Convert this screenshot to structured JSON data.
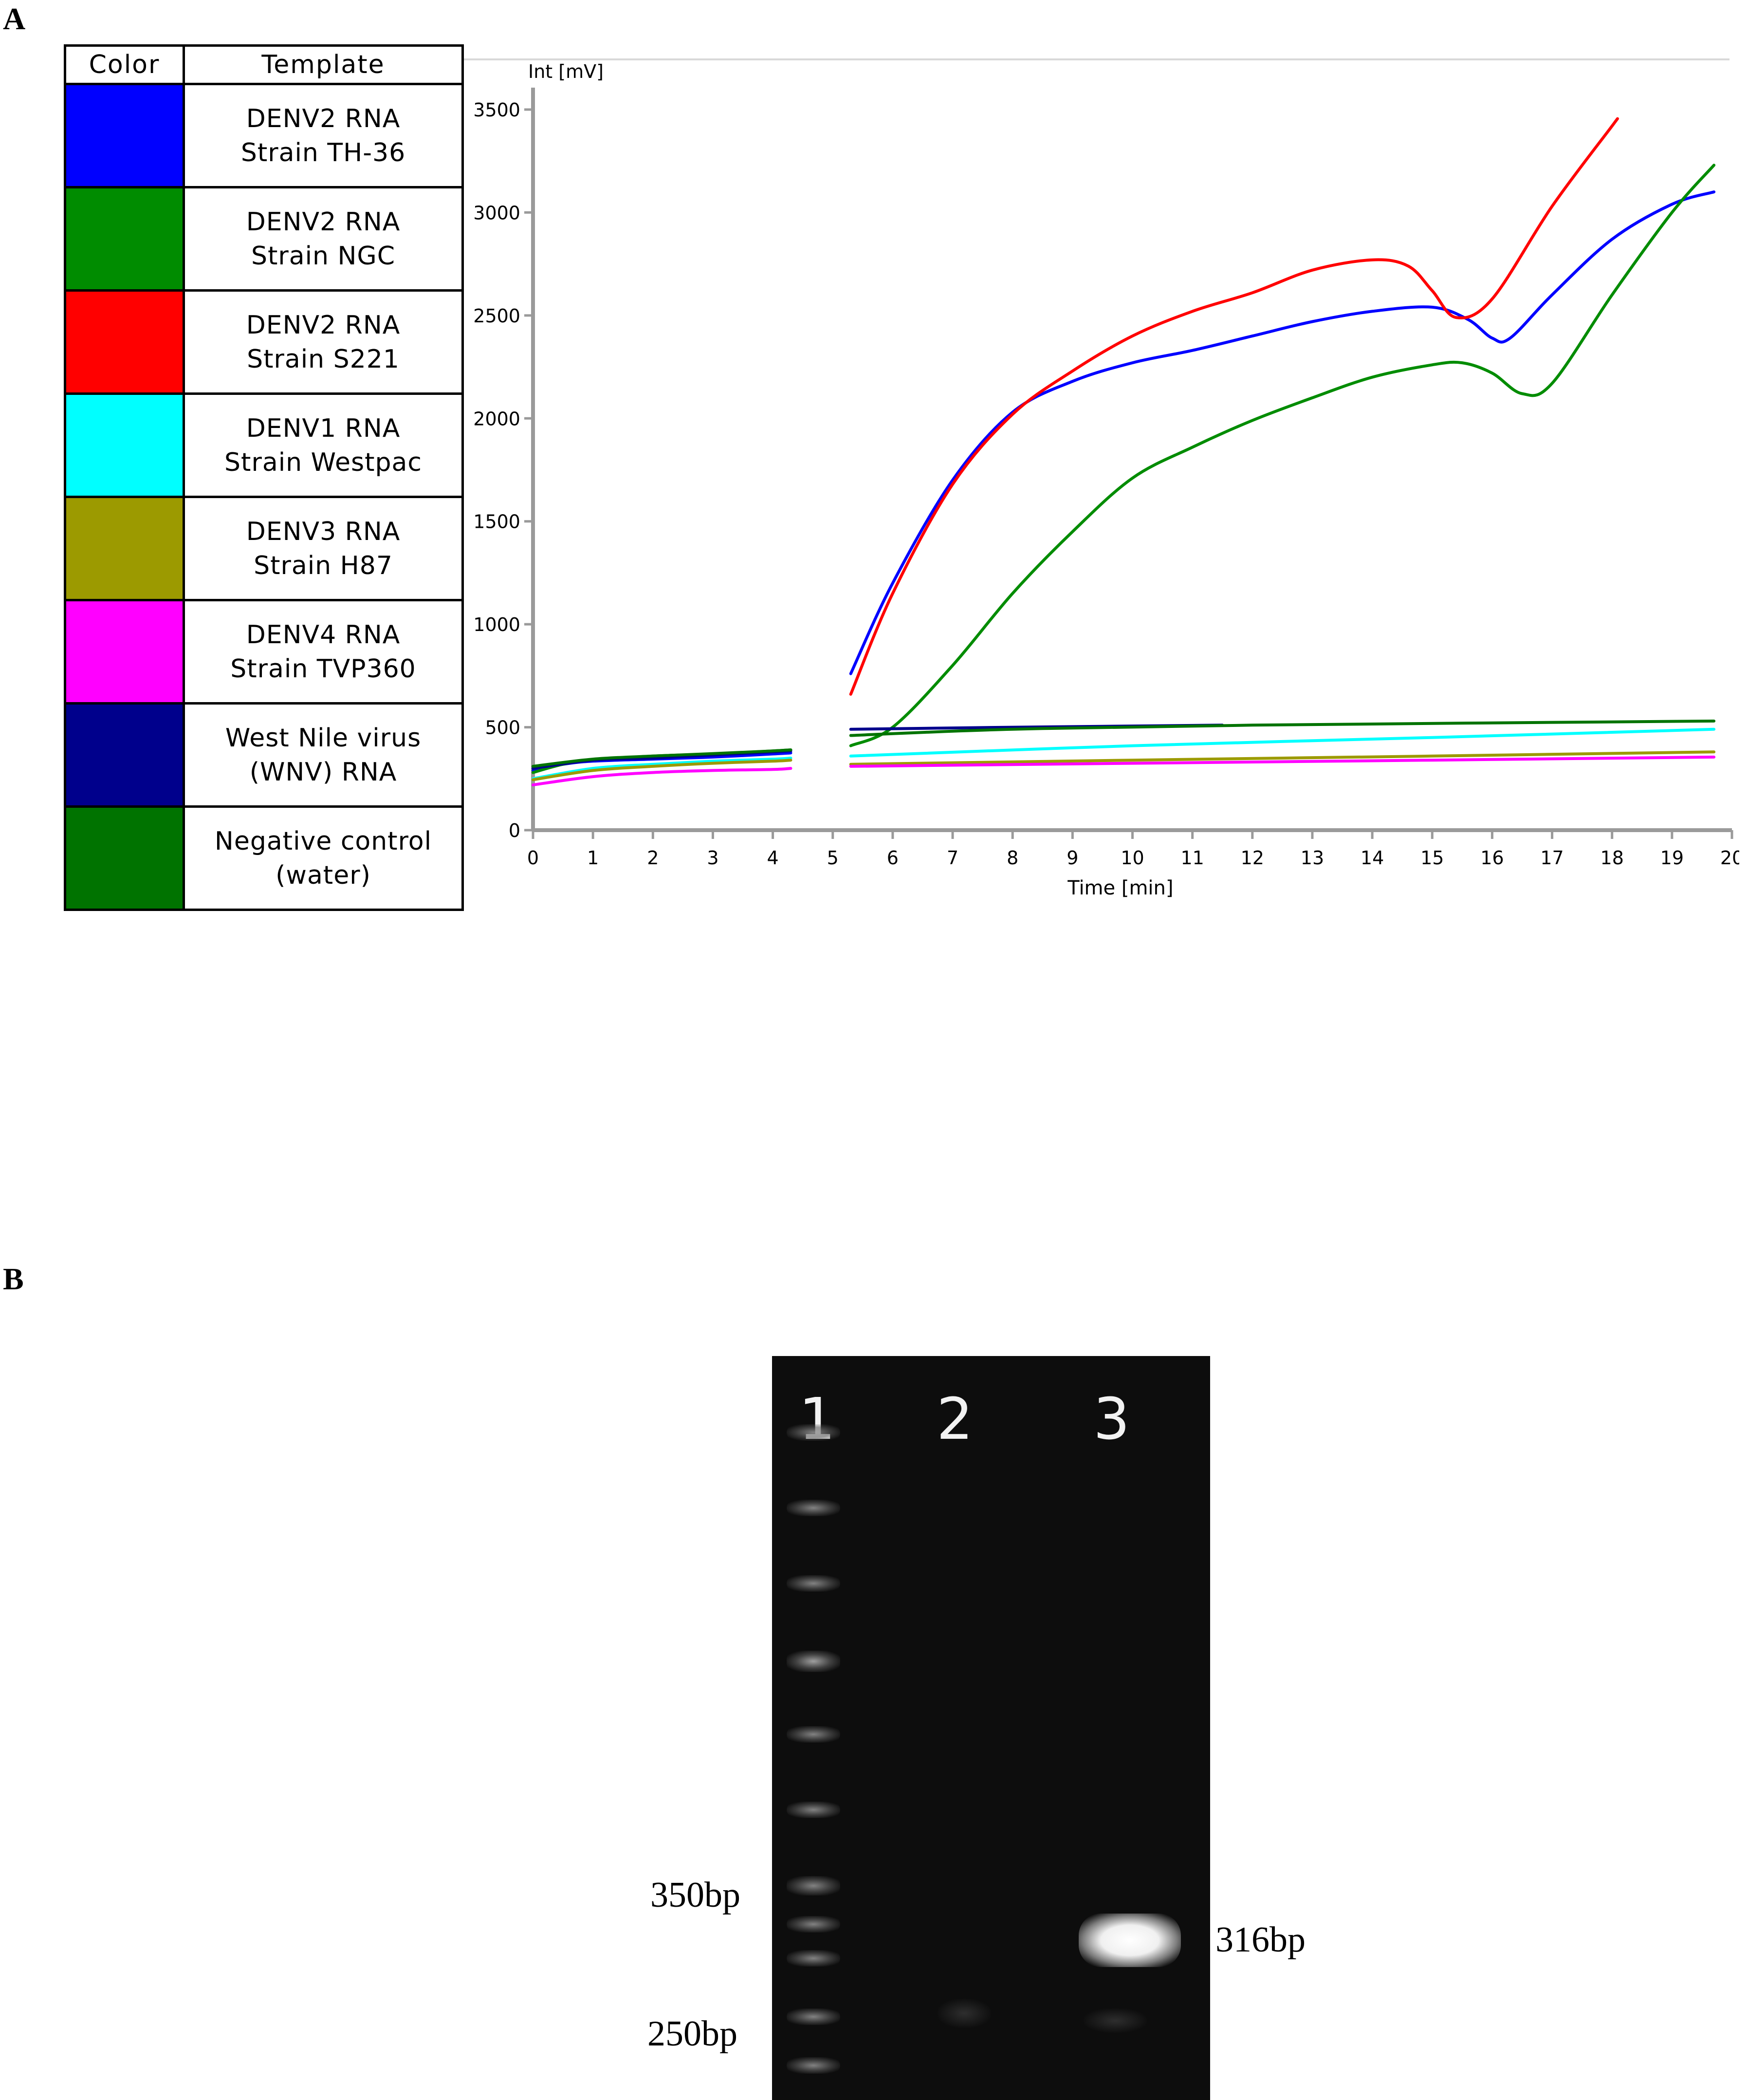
{
  "panels": {
    "a": "A",
    "b": "B"
  },
  "legend": {
    "headers": {
      "color": "Color",
      "template": "Template"
    },
    "rows": [
      {
        "color": "#0000ff",
        "line1": "DENV2 RNA",
        "line2": "Strain TH-36"
      },
      {
        "color": "#008c00",
        "line1": "DENV2 RNA",
        "line2": "Strain NGC"
      },
      {
        "color": "#ff0000",
        "line1": "DENV2 RNA",
        "line2": "Strain S221"
      },
      {
        "color": "#00ffff",
        "line1": "DENV1 RNA",
        "line2": "Strain Westpac"
      },
      {
        "color": "#9c9a00",
        "line1": "DENV3 RNA",
        "line2": "Strain H87"
      },
      {
        "color": "#ff00ff",
        "line1": "DENV4 RNA",
        "line2": "Strain TVP360"
      },
      {
        "color": "#00008c",
        "line1": "West Nile virus",
        "line2": "(WNV) RNA"
      },
      {
        "color": "#007300",
        "line1": "Negative control",
        "line2": "(water)"
      }
    ]
  },
  "chart_data": {
    "type": "line",
    "title": "",
    "xlabel": "Time [min]",
    "ylabel": "Int [mV]",
    "xlim": [
      0,
      20
    ],
    "ylim": [
      0,
      3500
    ],
    "xticks": [
      "0",
      "1",
      "2",
      "3",
      "4",
      "5",
      "6",
      "7",
      "8",
      "9",
      "10",
      "11",
      "12",
      "13",
      "14",
      "15",
      "16",
      "17",
      "18",
      "19",
      "20"
    ],
    "yticks": [
      "0",
      "500",
      "1000",
      "1500",
      "2000",
      "2500",
      "3000",
      "3500"
    ],
    "grid": false,
    "series": [
      {
        "name": "DENV2 RNA Strain TH-36",
        "color": "#0000ff",
        "segments": [
          [
            [
              0,
              290
            ],
            [
              0.5,
              320
            ],
            [
              1,
              335
            ],
            [
              2,
              345
            ],
            [
              3,
              355
            ],
            [
              4,
              370
            ],
            [
              4.3,
              375
            ]
          ],
          [
            [
              5.3,
              760
            ],
            [
              6,
              1200
            ],
            [
              7,
              1700
            ],
            [
              8,
              2030
            ],
            [
              9,
              2180
            ],
            [
              10,
              2270
            ],
            [
              11,
              2330
            ],
            [
              12,
              2400
            ],
            [
              13,
              2470
            ],
            [
              14,
              2520
            ],
            [
              15,
              2540
            ],
            [
              15.6,
              2480
            ],
            [
              16,
              2390
            ],
            [
              16.3,
              2390
            ],
            [
              17,
              2600
            ],
            [
              18,
              2870
            ],
            [
              19,
              3040
            ],
            [
              19.7,
              3100
            ]
          ]
        ]
      },
      {
        "name": "DENV2 RNA Strain NGC",
        "color": "#008c00",
        "segments": [
          [
            [
              0,
              280
            ],
            [
              0.5,
              320
            ],
            [
              1,
              340
            ],
            [
              2,
              360
            ],
            [
              3,
              370
            ],
            [
              4,
              385
            ],
            [
              4.3,
              390
            ]
          ],
          [
            [
              5.3,
              410
            ],
            [
              6,
              500
            ],
            [
              7,
              800
            ],
            [
              8,
              1150
            ],
            [
              9,
              1450
            ],
            [
              10,
              1710
            ],
            [
              11,
              1860
            ],
            [
              12,
              1990
            ],
            [
              13,
              2100
            ],
            [
              14,
              2200
            ],
            [
              15,
              2260
            ],
            [
              15.5,
              2270
            ],
            [
              16,
              2220
            ],
            [
              16.5,
              2120
            ],
            [
              17,
              2170
            ],
            [
              18,
              2600
            ],
            [
              19,
              3000
            ],
            [
              19.7,
              3230
            ]
          ]
        ]
      },
      {
        "name": "DENV2 RNA Strain S221",
        "color": "#ff0000",
        "segments": [
          [
            [
              5.3,
              660
            ],
            [
              6,
              1150
            ],
            [
              7,
              1680
            ],
            [
              8,
              2020
            ],
            [
              9,
              2230
            ],
            [
              10,
              2400
            ],
            [
              11,
              2520
            ],
            [
              12,
              2610
            ],
            [
              13,
              2720
            ],
            [
              14,
              2770
            ],
            [
              14.6,
              2740
            ],
            [
              15,
              2620
            ],
            [
              15.4,
              2490
            ],
            [
              16,
              2580
            ],
            [
              17,
              3030
            ],
            [
              18,
              3420
            ],
            [
              18.05,
              3440
            ]
          ]
        ]
      },
      {
        "name": "DENV1 RNA Strain Westpac",
        "color": "#00ffff",
        "segments": [
          [
            [
              0,
              250
            ],
            [
              1,
              300
            ],
            [
              2,
              320
            ],
            [
              3,
              335
            ],
            [
              4,
              345
            ],
            [
              4.3,
              350
            ]
          ],
          [
            [
              5.3,
              360
            ],
            [
              10,
              410
            ],
            [
              15,
              450
            ],
            [
              19.7,
              490
            ]
          ]
        ]
      },
      {
        "name": "DENV3 RNA Strain H87",
        "color": "#9c9a00",
        "segments": [
          [
            [
              0,
              245
            ],
            [
              1,
              290
            ],
            [
              2,
              310
            ],
            [
              3,
              325
            ],
            [
              4,
              335
            ],
            [
              4.3,
              340
            ]
          ],
          [
            [
              5.3,
              320
            ],
            [
              10,
              340
            ],
            [
              15,
              360
            ],
            [
              19.7,
              380
            ]
          ]
        ]
      },
      {
        "name": "DENV4 RNA Strain TVP360",
        "color": "#ff00ff",
        "segments": [
          [
            [
              0,
              220
            ],
            [
              1,
              260
            ],
            [
              2,
              280
            ],
            [
              3,
              290
            ],
            [
              4,
              295
            ],
            [
              4.3,
              300
            ]
          ],
          [
            [
              5.3,
              310
            ],
            [
              10,
              325
            ],
            [
              15,
              340
            ],
            [
              19.7,
              355
            ]
          ]
        ]
      },
      {
        "name": "West Nile virus (WNV) RNA",
        "color": "#00008c",
        "segments": [
          [
            [
              0,
              300
            ],
            [
              1,
              340
            ],
            [
              2,
              350
            ],
            [
              3,
              365
            ],
            [
              4,
              380
            ],
            [
              4.3,
              385
            ]
          ],
          [
            [
              5.3,
              490
            ],
            [
              8,
              500
            ],
            [
              11.5,
              510
            ]
          ]
        ]
      },
      {
        "name": "Negative control (water)",
        "color": "#007300",
        "segments": [
          [
            [
              0,
              310
            ],
            [
              1,
              345
            ],
            [
              2,
              360
            ],
            [
              3,
              372
            ],
            [
              4,
              385
            ],
            [
              4.3,
              390
            ]
          ],
          [
            [
              5.3,
              460
            ],
            [
              8,
              490
            ],
            [
              12,
              510
            ],
            [
              19.7,
              530
            ]
          ]
        ]
      }
    ]
  },
  "gel": {
    "lanes": [
      "1",
      "2",
      "3"
    ],
    "markers_left": [
      "350bp",
      "250bp"
    ],
    "marker_right": "316bp"
  }
}
